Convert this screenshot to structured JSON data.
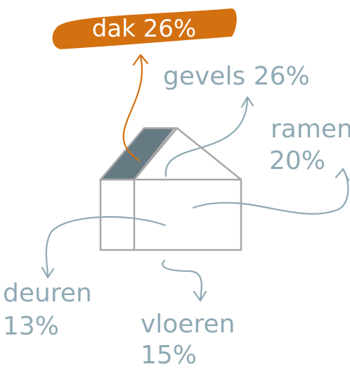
{
  "parts": [
    {
      "name": "dak",
      "share": "26%"
    },
    {
      "name": "gevels",
      "share": "26%"
    },
    {
      "name": "ramen",
      "share": "20%"
    },
    {
      "name": "deuren",
      "share": "13%"
    },
    {
      "name": "vloeren",
      "share": "15%"
    }
  ]
}
